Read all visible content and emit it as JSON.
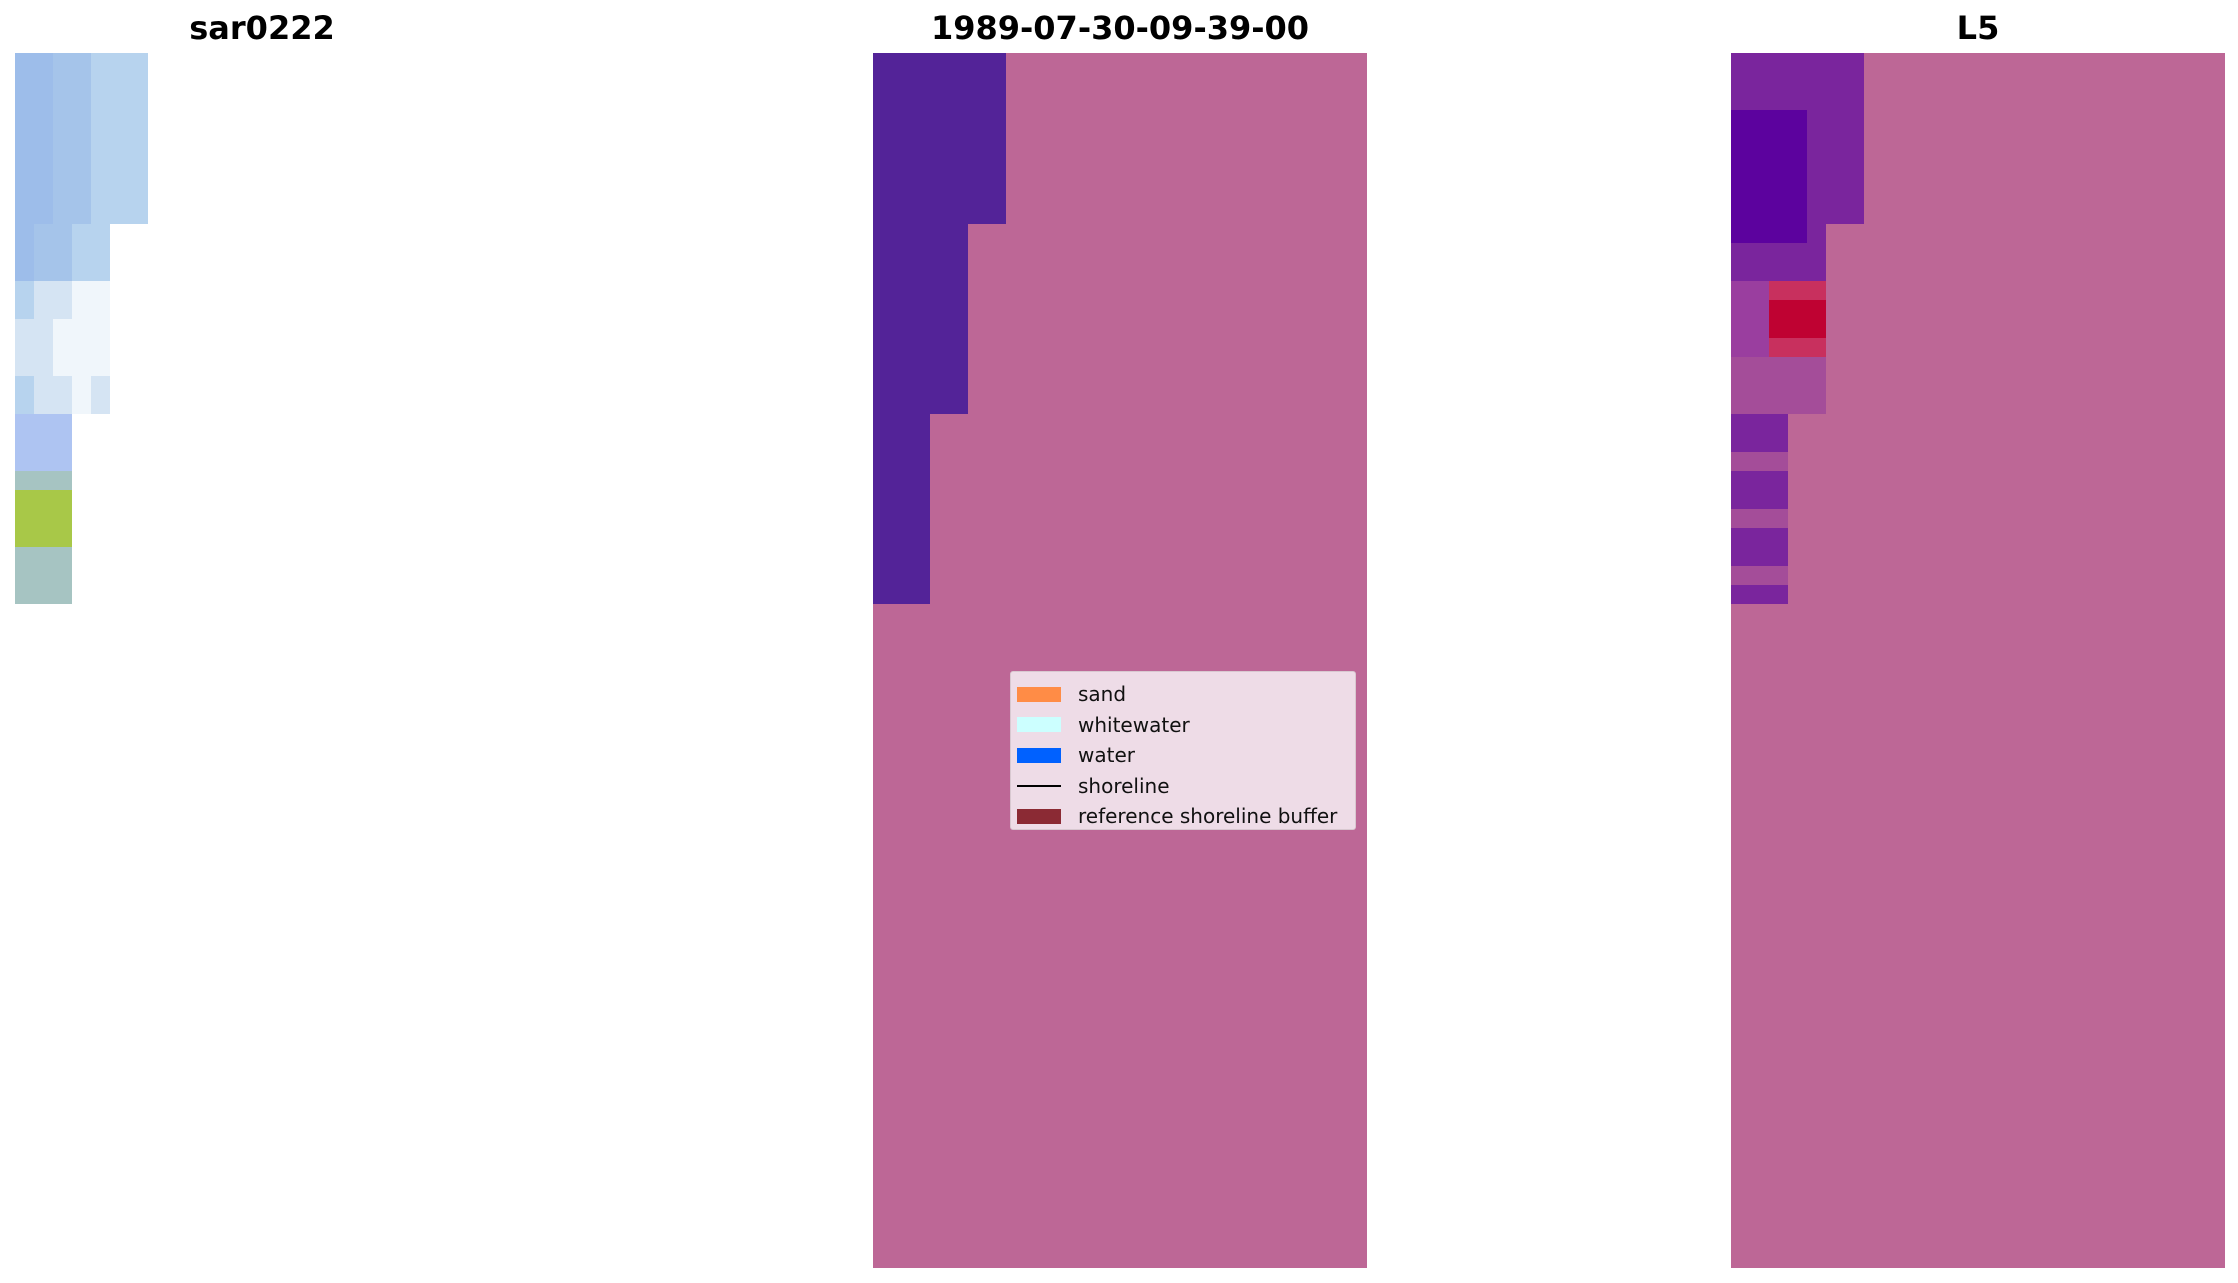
{
  "panels": {
    "rgb": {
      "title": "sar0222"
    },
    "classification": {
      "title": "1989-07-30-09-39-00"
    },
    "index": {
      "title": "L5"
    }
  },
  "colors": {
    "background_fill": "#bd6796",
    "classified_water": "#532398",
    "rgb_palette": [
      "#9dbdea",
      "#a5c4ea",
      "#b7d3ee",
      "#d5e4f3",
      "#f0f6fb",
      "#aec4f2",
      "#a8c848",
      "#a6c4c2"
    ],
    "index_palette": [
      "#7a259d",
      "#5c029e",
      "#9a3e9f",
      "#c8305e",
      "#bf0232",
      "#a44d99"
    ]
  },
  "legend": {
    "items": [
      {
        "label": "sand",
        "kind": "patch",
        "color": "#ff8c46"
      },
      {
        "label": "whitewater",
        "kind": "patch",
        "color": "#ccffff"
      },
      {
        "label": "water",
        "kind": "patch",
        "color": "#0061ff"
      },
      {
        "label": "shoreline",
        "kind": "line",
        "color": "#000000"
      },
      {
        "label": "reference shoreline buffer",
        "kind": "patch",
        "color": "#8b2a34"
      }
    ]
  }
}
